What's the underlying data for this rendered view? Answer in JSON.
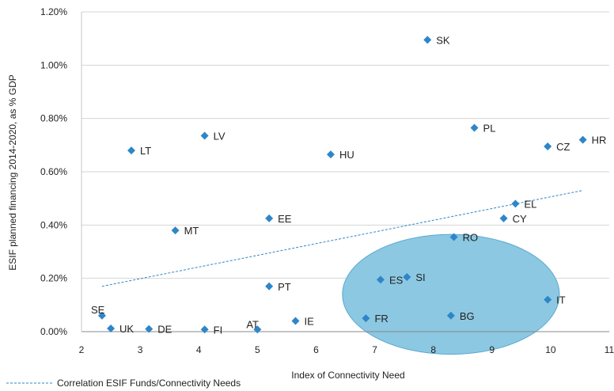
{
  "chart_data": {
    "type": "scatter",
    "xlabel": "Index of Connectivity Need",
    "ylabel": "ESIF planned financing 2014-2020, as % GDP",
    "xlim": [
      2,
      11
    ],
    "ylim": [
      0,
      1.2
    ],
    "x_ticks": [
      "2",
      "3",
      "4",
      "5",
      "6",
      "7",
      "8",
      "9",
      "10",
      "11"
    ],
    "y_ticks": [
      "0.00%",
      "0.20%",
      "0.40%",
      "0.60%",
      "0.80%",
      "1.00%",
      "1.20%"
    ],
    "grid": "horizontal",
    "marker_color": "#2e86c9",
    "points": [
      {
        "label": "SK",
        "x": 7.9,
        "y": 1.095
      },
      {
        "label": "LV",
        "x": 4.1,
        "y": 0.735
      },
      {
        "label": "PL",
        "x": 8.7,
        "y": 0.765
      },
      {
        "label": "LT",
        "x": 2.85,
        "y": 0.68
      },
      {
        "label": "HU",
        "x": 6.25,
        "y": 0.665
      },
      {
        "label": "CZ",
        "x": 9.95,
        "y": 0.695
      },
      {
        "label": "HR",
        "x": 10.55,
        "y": 0.72
      },
      {
        "label": "EL",
        "x": 9.4,
        "y": 0.48
      },
      {
        "label": "EE",
        "x": 5.2,
        "y": 0.425
      },
      {
        "label": "CY",
        "x": 9.2,
        "y": 0.425
      },
      {
        "label": "MT",
        "x": 3.6,
        "y": 0.38
      },
      {
        "label": "RO",
        "x": 8.35,
        "y": 0.355
      },
      {
        "label": "SI",
        "x": 7.55,
        "y": 0.205
      },
      {
        "label": "ES",
        "x": 7.1,
        "y": 0.195
      },
      {
        "label": "PT",
        "x": 5.2,
        "y": 0.17
      },
      {
        "label": "IT",
        "x": 9.95,
        "y": 0.12
      },
      {
        "label": "SE",
        "x": 2.35,
        "y": 0.06
      },
      {
        "label": "BG",
        "x": 8.3,
        "y": 0.06
      },
      {
        "label": "FR",
        "x": 6.85,
        "y": 0.05
      },
      {
        "label": "IE",
        "x": 5.65,
        "y": 0.04
      },
      {
        "label": "UK",
        "x": 2.5,
        "y": 0.012
      },
      {
        "label": "DE",
        "x": 3.15,
        "y": 0.01
      },
      {
        "label": "FI",
        "x": 4.1,
        "y": 0.008
      },
      {
        "label": "AT",
        "x": 5.0,
        "y": 0.008
      }
    ],
    "trendline": {
      "name": "Correlation ESIF Funds/Connectivity Needs",
      "x": [
        2.35,
        10.55
      ],
      "y": [
        0.17,
        0.53
      ],
      "style": "dashed",
      "color": "#2e86c9"
    },
    "highlight_ellipse": {
      "center_x": 8.3,
      "center_y": 0.14,
      "radius_x": 1.85,
      "radius_y": 0.225,
      "color": "#8cc8e2"
    },
    "legend": {
      "position": "bottom-left"
    }
  }
}
